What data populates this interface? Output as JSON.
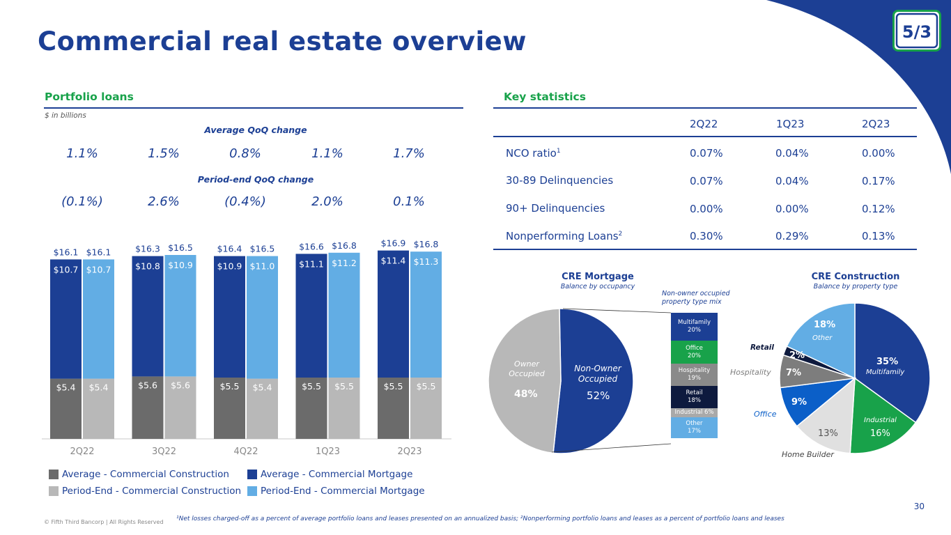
{
  "title": "Commercial real estate overview",
  "portfolio": {
    "heading": "Portfolio loans",
    "units": "$ in billions",
    "avg_change_label": "Average QoQ change",
    "avg_changes": [
      "1.1%",
      "1.5%",
      "0.8%",
      "1.1%",
      "1.7%"
    ],
    "pe_change_label": "Period-end QoQ change",
    "pe_changes": [
      "(0.1%)",
      "2.6%",
      "(0.4%)",
      "2.0%",
      "0.1%"
    ]
  },
  "chart_data": {
    "type": "bar",
    "stacked_groups": true,
    "categories": [
      "2Q22",
      "3Q22",
      "4Q22",
      "1Q23",
      "2Q23"
    ],
    "series": [
      {
        "name": "Average - Commercial Construction",
        "group": "Average",
        "values": [
          5.4,
          5.6,
          5.5,
          5.5,
          5.5
        ],
        "labels": [
          "$5.4",
          "$5.6",
          "$5.5",
          "$5.5",
          "$5.5"
        ],
        "color": "#6b6b6b"
      },
      {
        "name": "Average - Commercial Mortgage",
        "group": "Average",
        "values": [
          10.7,
          10.8,
          10.9,
          11.1,
          11.4
        ],
        "labels": [
          "$10.7",
          "$10.8",
          "$10.9",
          "$11.1",
          "$11.4"
        ],
        "color": "#1c3f94"
      },
      {
        "name": "Period-End - Commercial Construction",
        "group": "Period-End",
        "values": [
          5.4,
          5.6,
          5.4,
          5.5,
          5.5
        ],
        "labels": [
          "$5.4",
          "$5.6",
          "$5.4",
          "$5.5",
          "$5.5"
        ],
        "color": "#b8b8b8"
      },
      {
        "name": "Period-End - Commercial Mortgage",
        "group": "Period-End",
        "values": [
          10.7,
          10.9,
          11.0,
          11.2,
          11.3
        ],
        "labels": [
          "$10.7",
          "$10.9",
          "$11.0",
          "$11.2",
          "$11.3"
        ],
        "color": "#62ade4"
      }
    ],
    "totals": {
      "Average": [
        "$16.1",
        "$16.3",
        "$16.4",
        "$16.6",
        "$16.9"
      ],
      "Period-End": [
        "$16.1",
        "$16.5",
        "$16.5",
        "$16.8",
        "$16.8"
      ]
    },
    "ylim": [
      0,
      17.5
    ],
    "xlabel": "",
    "ylabel": ""
  },
  "key_stats": {
    "heading": "Key statistics",
    "columns": [
      "2Q22",
      "1Q23",
      "2Q23"
    ],
    "rows": [
      {
        "label": "NCO ratio",
        "sup": "1",
        "values": [
          "0.07%",
          "0.04%",
          "0.00%"
        ]
      },
      {
        "label": "30-89 Delinquencies",
        "sup": "",
        "values": [
          "0.07%",
          "0.04%",
          "0.17%"
        ]
      },
      {
        "label": "90+ Delinquencies",
        "sup": "",
        "values": [
          "0.00%",
          "0.00%",
          "0.12%"
        ]
      },
      {
        "label": "Nonperforming Loans",
        "sup": "2",
        "values": [
          "0.30%",
          "0.29%",
          "0.13%"
        ]
      }
    ]
  },
  "cre_mortgage": {
    "title": "CRE Mortgage",
    "subtitle": "Balance by occupancy",
    "mix_label": "Non-owner occupied property type mix",
    "slices": [
      {
        "name": "Non-Owner Occupied",
        "line1": "Non-Owner",
        "line2": "Occupied",
        "value": 52,
        "label": "52%",
        "color": "#1c3f94"
      },
      {
        "name": "Owner Occupied",
        "line1": "Owner",
        "line2": "Occupied",
        "value": 48,
        "label": "48%",
        "color": "#b8b8b8"
      }
    ],
    "mix": [
      {
        "name": "Multifamily",
        "label": "20%",
        "value": 20,
        "color": "#1c3f94",
        "text": "#ffffff"
      },
      {
        "name": "Office",
        "label": "20%",
        "value": 20,
        "color": "#18a24a",
        "text": "#ffffff"
      },
      {
        "name": "Hospitality",
        "label": "19%",
        "value": 19,
        "color": "#8a8a8a",
        "text": "#ffffff"
      },
      {
        "name": "Retail",
        "label": "18%",
        "value": 18,
        "color": "#0e1a3e",
        "text": "#ffffff"
      },
      {
        "name": "Industrial",
        "label": "6%",
        "value": 6,
        "color": "#a9a9a9",
        "text": "#ffffff"
      },
      {
        "name": "Other",
        "label": "17%",
        "value": 17,
        "color": "#62ade4",
        "text": "#ffffff"
      }
    ]
  },
  "cre_construction": {
    "title": "CRE Construction",
    "subtitle": "Balance by property type",
    "slices": [
      {
        "name": "Multifamily",
        "value": 35,
        "label": "35%",
        "color": "#1c3f94"
      },
      {
        "name": "Industrial",
        "value": 16,
        "label": "16%",
        "color": "#18a24a"
      },
      {
        "name": "Home Builder",
        "value": 13,
        "label": "13%",
        "color": "#e0e0e0"
      },
      {
        "name": "Office",
        "value": 9,
        "label": "9%",
        "color": "#0b5fc8"
      },
      {
        "name": "Hospitality",
        "value": 7,
        "label": "7%",
        "color": "#7d7d7d"
      },
      {
        "name": "Retail",
        "value": 2,
        "label": "2%",
        "color": "#0e1a3e"
      },
      {
        "name": "Other",
        "value": 18,
        "label": "18%",
        "color": "#62ade4"
      }
    ]
  },
  "footnote": "¹Net losses charged-off as a percent of average portfolio loans and leases presented on an annualized basis; ²Nonperforming portfolio loans and leases as a percent of portfolio loans and leases",
  "copyright": "© Fifth Third Bancorp | All Rights Reserved",
  "page_number": "30",
  "logo_text": "5/3"
}
